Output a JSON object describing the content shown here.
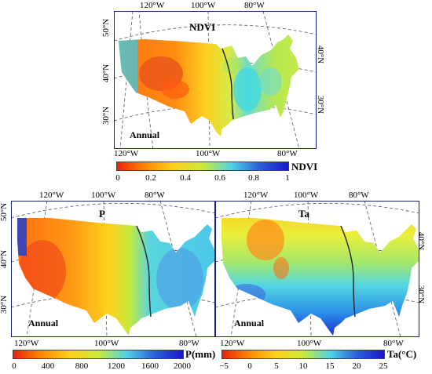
{
  "panels": {
    "ndvi": {
      "title": "NDVI",
      "period": "Annual",
      "top_lon": [
        "120°W",
        "100°W",
        "80°W"
      ],
      "bottom_lon": [
        "120°W",
        "100°W",
        "80°W"
      ],
      "left_lat": [
        "50°N",
        "40°N",
        "30°N"
      ],
      "right_lat": [
        "40°N",
        "30°N"
      ],
      "colorbar": {
        "label": "NDVI",
        "ticks": [
          "0",
          "0.2",
          "0.4",
          "0.6",
          "0.8",
          "1"
        ],
        "colors": [
          "#e8230e",
          "#ff8a00",
          "#ffd21a",
          "#c9ea3a",
          "#4fd3e6",
          "#2a5fd8",
          "#1a17c8"
        ]
      }
    },
    "p": {
      "title": "P",
      "period": "Annual",
      "top_lon": [
        "120°W",
        "100°W",
        "80°W"
      ],
      "bottom_lon": [
        "120°W",
        "100°W",
        "80°W"
      ],
      "left_lat": [
        "50°N",
        "40°N",
        "30°N"
      ],
      "colorbar": {
        "label": "P(mm)",
        "ticks": [
          "0",
          "400",
          "800",
          "1200",
          "1600",
          "2000"
        ],
        "colors": [
          "#e8230e",
          "#ff8a00",
          "#ffd21a",
          "#c9ea3a",
          "#4fd3e6",
          "#2a5fd8",
          "#1a17c8"
        ]
      }
    },
    "ta": {
      "title": "Ta",
      "period": "Annual",
      "top_lon": [
        "120°W",
        "100°W",
        "80°W"
      ],
      "bottom_lon": [
        "120°W",
        "100°W",
        "80°W"
      ],
      "right_lat": [
        "40°N",
        "30°N"
      ],
      "colorbar": {
        "label": "Ta(°C)",
        "ticks": [
          "−5",
          "0",
          "5",
          "10",
          "15",
          "20",
          "25"
        ],
        "colors": [
          "#e8230e",
          "#ff8a00",
          "#ffd21a",
          "#c9ea3a",
          "#4fd3e6",
          "#2a5fd8",
          "#1a17c8"
        ]
      }
    }
  }
}
